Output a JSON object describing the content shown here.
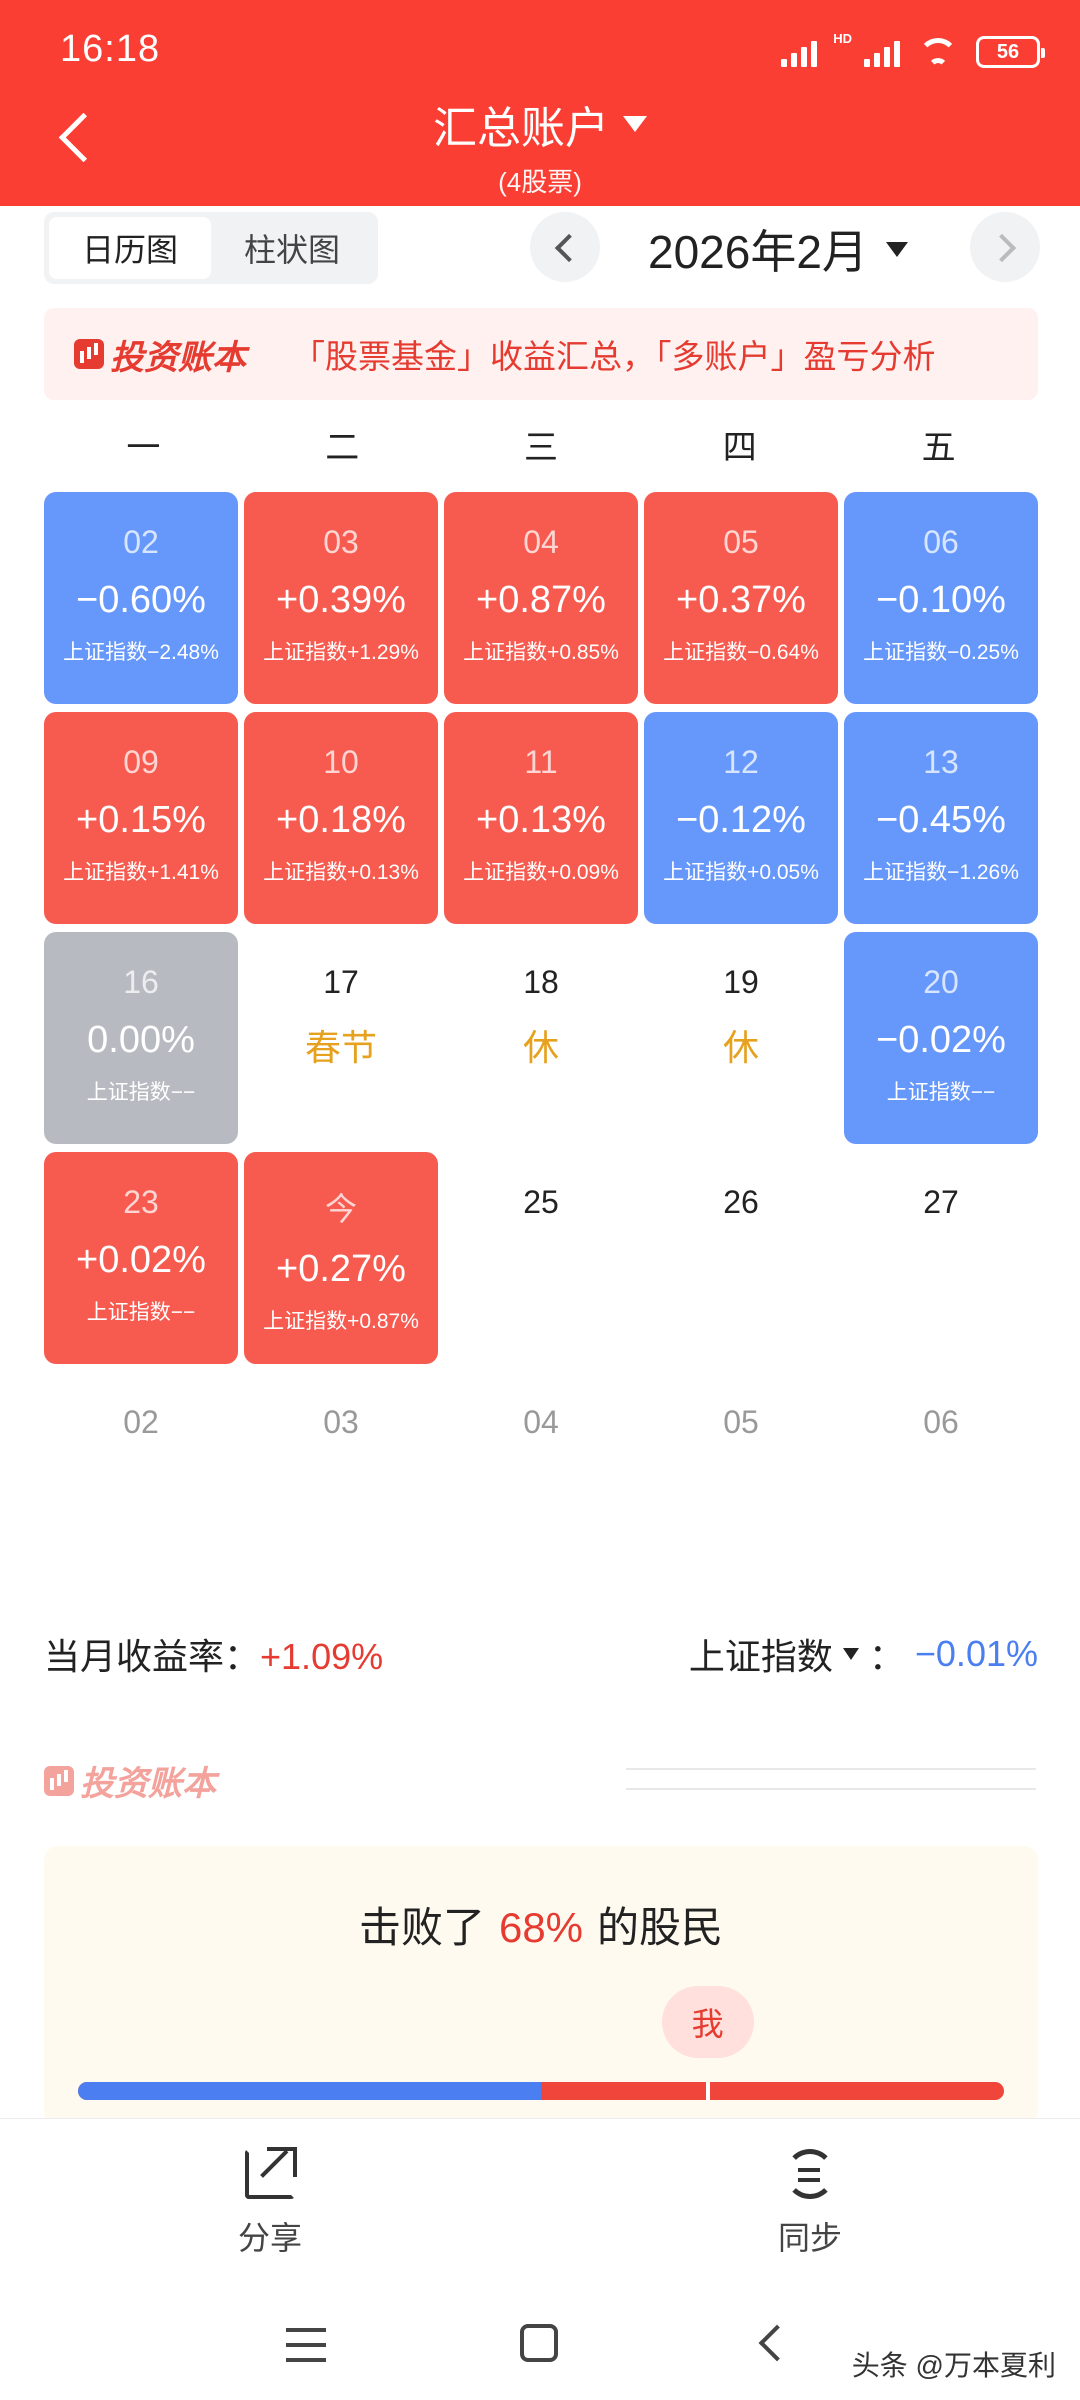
{
  "status_bar": {
    "time": "16:18",
    "network": "HD",
    "battery": "56"
  },
  "header": {
    "title": "汇总账户",
    "subtitle": "(4股票)"
  },
  "view_toggle": {
    "calendar": "日历图",
    "bar": "柱状图"
  },
  "month_nav": {
    "label": "2026年2月"
  },
  "banner": {
    "logo": "投资账本",
    "text": "「股票基金」收益汇总，「多账户」盈亏分析"
  },
  "weekdays": [
    "一",
    "二",
    "三",
    "四",
    "五"
  ],
  "calendar": [
    {
      "date": "02",
      "pct": "−0.60%",
      "index": "上证指数−2.48%",
      "trend": "down"
    },
    {
      "date": "03",
      "pct": "+0.39%",
      "index": "上证指数+1.29%",
      "trend": "up"
    },
    {
      "date": "04",
      "pct": "+0.87%",
      "index": "上证指数+0.85%",
      "trend": "up"
    },
    {
      "date": "05",
      "pct": "+0.37%",
      "index": "上证指数−0.64%",
      "trend": "up"
    },
    {
      "date": "06",
      "pct": "−0.10%",
      "index": "上证指数−0.25%",
      "trend": "down"
    },
    {
      "date": "09",
      "pct": "+0.15%",
      "index": "上证指数+1.41%",
      "trend": "up"
    },
    {
      "date": "10",
      "pct": "+0.18%",
      "index": "上证指数+0.13%",
      "trend": "up"
    },
    {
      "date": "11",
      "pct": "+0.13%",
      "index": "上证指数+0.09%",
      "trend": "up"
    },
    {
      "date": "12",
      "pct": "−0.12%",
      "index": "上证指数+0.05%",
      "trend": "down"
    },
    {
      "date": "13",
      "pct": "−0.45%",
      "index": "上证指数−1.26%",
      "trend": "down"
    },
    {
      "date": "16",
      "pct": "0.00%",
      "index": "上证指数−−",
      "trend": "flat"
    },
    {
      "date": "17",
      "holiday": "春节"
    },
    {
      "date": "18",
      "holiday": "休"
    },
    {
      "date": "19",
      "holiday": "休"
    },
    {
      "date": "20",
      "pct": "−0.02%",
      "index": "上证指数−−",
      "trend": "down"
    },
    {
      "date": "23",
      "pct": "+0.02%",
      "index": "上证指数−−",
      "trend": "up"
    },
    {
      "date": "今",
      "pct": "+0.27%",
      "index": "上证指数+0.87%",
      "trend": "up"
    },
    {
      "date": "25"
    },
    {
      "date": "26"
    },
    {
      "date": "27"
    },
    {
      "date": "02",
      "next_month": true
    },
    {
      "date": "03",
      "next_month": true
    },
    {
      "date": "04",
      "next_month": true
    },
    {
      "date": "05",
      "next_month": true
    },
    {
      "date": "06",
      "next_month": true
    }
  ],
  "summary": {
    "label": "当月收益率：",
    "value": "+1.09%",
    "index_label": "上证指数",
    "index_sep": "：",
    "index_value": "−0.01%"
  },
  "watermark": {
    "logo": "投资账本"
  },
  "beat": {
    "prefix": "击败了",
    "percent": "68%",
    "suffix": "的股民",
    "me_label": "我",
    "beat_fraction": 0.68,
    "blue_fraction": 0.5
  },
  "bottom_actions": {
    "share": "分享",
    "sync": "同步"
  },
  "credit": "头条 @万本夏利",
  "colors": {
    "brand": "#fa3e33",
    "up": "#f75a4f",
    "down": "#6698fb",
    "flat": "#b7bac1",
    "holiday": "#e6a21f"
  }
}
